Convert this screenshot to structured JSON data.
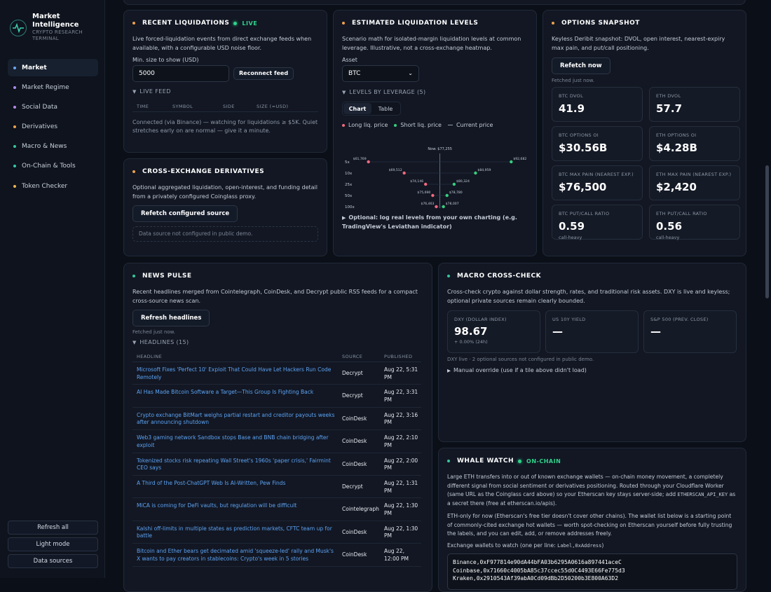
{
  "brand": {
    "title": "Market Intelligence",
    "subtitle": "Crypto Research Terminal"
  },
  "sidebar": {
    "items": [
      {
        "label": "Market",
        "color": "#6aa6f5",
        "active": true
      },
      {
        "label": "Market Regime",
        "color": "#a98bf0"
      },
      {
        "label": "Social Data",
        "color": "#b58ae8"
      },
      {
        "label": "Derivatives",
        "color": "#f0a04b"
      },
      {
        "label": "Macro & News",
        "color": "#35c79a"
      },
      {
        "label": "On-Chain & Tools",
        "color": "#35c7a8"
      },
      {
        "label": "Token Checker",
        "color": "#f0b44b"
      }
    ],
    "buttons": [
      "Refresh all",
      "Light mode",
      "Data sources"
    ]
  },
  "liquidations": {
    "title": "RECENT LIQUIDATIONS",
    "badge": "LIVE",
    "desc": "Live forced-liquidation events from direct exchange feeds when available, with a configurable USD noise floor.",
    "min_label": "Min. size to show (USD)",
    "min_value": "5000",
    "reconnect": "Reconnect feed",
    "feed_label": "LIVE FEED",
    "columns": [
      "TIME",
      "SYMBOL",
      "SIDE",
      "SIZE (≈USD)"
    ],
    "status": "Connected (via Binance) — watching for liquidations ≥ $5K. Quiet stretches early on are normal — give it a minute."
  },
  "estimated": {
    "title": "ESTIMATED LIQUIDATION LEVELS",
    "desc": "Scenario math for isolated-margin liquidation levels at common leverage. Illustrative, not a cross-exchange heatmap.",
    "asset_label": "Asset",
    "asset_value": "BTC",
    "levels_label": "LEVELS BY LEVERAGE",
    "levels_count": "(5)",
    "tabs": [
      "Chart",
      "Table"
    ],
    "legend": [
      "Long liq. price",
      "Short liq. price",
      "Current price"
    ],
    "optional": "Optional: log real levels from your own charting (e.g. TradingView's Leviathan indicator)"
  },
  "chart_data": {
    "type": "scatter",
    "title": "",
    "now_label": "Now: $77,255",
    "current_price": 77255,
    "categories": [
      "5x",
      "10x",
      "25x",
      "50x",
      "100x"
    ],
    "series": [
      {
        "name": "Long liq. price",
        "color": "#f26a7e",
        "values": [
          61769,
          69512,
          74146,
          75690,
          76463
        ],
        "labels": [
          "$61,769",
          "$69,512",
          "$74,146",
          "$75,690",
          "$76,463"
        ]
      },
      {
        "name": "Short liq. price",
        "color": "#35d07f",
        "values": [
          92682,
          84959,
          80324,
          78780,
          78007
        ],
        "labels": [
          "$92,682",
          "$84,959",
          "$80,324",
          "$78,780",
          "$78,007"
        ]
      }
    ],
    "legend_position": "top-left"
  },
  "derivs": {
    "title": "CROSS-EXCHANGE DERIVATIVES",
    "desc": "Optional aggregated liquidation, open-interest, and funding detail from a privately configured Coinglass proxy.",
    "button": "Refetch configured source",
    "note": "Data source not configured in public demo."
  },
  "options": {
    "title": "OPTIONS SNAPSHOT",
    "desc": "Keyless Deribit snapshot: DVOL, open interest, nearest-expiry max pain, and put/call positioning.",
    "button": "Refetch now",
    "fetched": "Fetched just now.",
    "tiles": [
      {
        "label": "BTC DVOL",
        "value": "41.9",
        "sub": ""
      },
      {
        "label": "ETH DVOL",
        "value": "57.7",
        "sub": ""
      },
      {
        "label": "BTC OPTIONS OI",
        "value": "$30.56B",
        "sub": ""
      },
      {
        "label": "ETH OPTIONS OI",
        "value": "$4.28B",
        "sub": ""
      },
      {
        "label": "BTC MAX PAIN (NEAREST EXP.)",
        "value": "$76,500",
        "sub": ""
      },
      {
        "label": "ETH MAX PAIN (NEAREST EXP.)",
        "value": "$2,420",
        "sub": ""
      },
      {
        "label": "BTC PUT/CALL RATIO",
        "value": "0.59",
        "sub": "call-heavy"
      },
      {
        "label": "ETH PUT/CALL RATIO",
        "value": "0.56",
        "sub": "call-heavy"
      }
    ]
  },
  "news": {
    "title": "NEWS PULSE",
    "desc": "Recent headlines merged from Cointelegraph, CoinDesk, and Decrypt public RSS feeds for a compact cross-source news scan.",
    "button": "Refresh headlines",
    "fetched": "Fetched just now.",
    "headlines_label": "HEADLINES",
    "headlines_count": "(15)",
    "columns": [
      "HEADLINE",
      "SOURCE",
      "PUBLISHED"
    ],
    "rows": [
      {
        "headline": "Microsoft Fixes 'Perfect 10' Exploit That Could Have Let Hackers Run Code Remotely",
        "source": "Decrypt",
        "published": "Aug 22, 5:31 PM"
      },
      {
        "headline": "AI Has Made Bitcoin Software a Target—This Group Is Fighting Back",
        "source": "Decrypt",
        "published": "Aug 22, 3:31 PM"
      },
      {
        "headline": "Crypto exchange BitMart weighs partial restart and creditor payouts weeks after announcing shutdown",
        "source": "CoinDesk",
        "published": "Aug 22, 3:16 PM"
      },
      {
        "headline": "Web3 gaming network Sandbox stops Base and BNB chain bridging after exploit",
        "source": "CoinDesk",
        "published": "Aug 22, 2:10 PM"
      },
      {
        "headline": "Tokenized stocks risk repeating Wall Street's 1960s 'paper crisis,' Fairmint CEO says",
        "source": "CoinDesk",
        "published": "Aug 22, 2:00 PM"
      },
      {
        "headline": "A Third of the Post-ChatGPT Web Is AI-Written, Pew Finds",
        "source": "Decrypt",
        "published": "Aug 22, 1:31 PM"
      },
      {
        "headline": "MiCA is coming for DeFi vaults, but regulation will be difficult",
        "source": "Cointelegraph",
        "published": "Aug 22, 1:30 PM"
      },
      {
        "headline": "Kalshi off-limits in multiple states as prediction markets, CFTC team up for battle",
        "source": "CoinDesk",
        "published": "Aug 22, 1:30 PM"
      },
      {
        "headline": "Bitcoin and Ether bears get decimated amid 'squeeze-led' rally and Musk's X wants to pay creators in stablecoins: Crypto's week in 5 stories",
        "source": "CoinDesk",
        "published": "Aug 22, 12:00 PM"
      }
    ]
  },
  "macro": {
    "title": "MACRO CROSS-CHECK",
    "desc": "Cross-check crypto against dollar strength, rates, and traditional risk assets. DXY is live and keyless; optional private sources remain clearly bounded.",
    "tiles": [
      {
        "label": "DXY (DOLLAR INDEX)",
        "value": "98.67",
        "sub": "+ 0.00% (24h)"
      },
      {
        "label": "US 10Y YIELD",
        "value": "—",
        "sub": ""
      },
      {
        "label": "S&P 500 (PREV. CLOSE)",
        "value": "—",
        "sub": ""
      }
    ],
    "note": "DXY live · 2 optional sources not configured in public demo.",
    "override": "Manual override (use if a tile above didn't load)"
  },
  "whale": {
    "title": "WHALE WATCH",
    "badge": "ON-CHAIN",
    "desc_1": "Large ETH transfers into or out of known exchange wallets — on-chain money movement, a completely different signal from social sentiment or derivatives positioning. Routed through your Cloudflare Worker (same URL as the Coinglass card above) so your Etherscan key stays server-side; add",
    "desc_code": "ETHERSCAN_API_KEY",
    "desc_2": "as a secret there (free at etherscan.io/apis).",
    "desc_p2": "ETH-only for now (Etherscan's free tier doesn't cover other chains). The wallet list below is a starting point of commonly-cited exchange hot wallets — worth spot-checking on Etherscan yourself before fully trusting the labels, and you can edit, add, or remove addresses freely.",
    "wallets_label": "Exchange wallets to watch (one per line:",
    "wallets_code": "Label,0xAddress",
    "wallets_end": ")",
    "wallets": [
      "Binance,0xF977814e90dA44bFA03b6295A0616a897441aceC",
      "Coinbase,0x71660c4005bA85c37ccec55d0C4493E66Fe775d3",
      "Kraken,0x2910543Af39abA0Cd09dBb2D50200b3E800A63D2"
    ]
  }
}
